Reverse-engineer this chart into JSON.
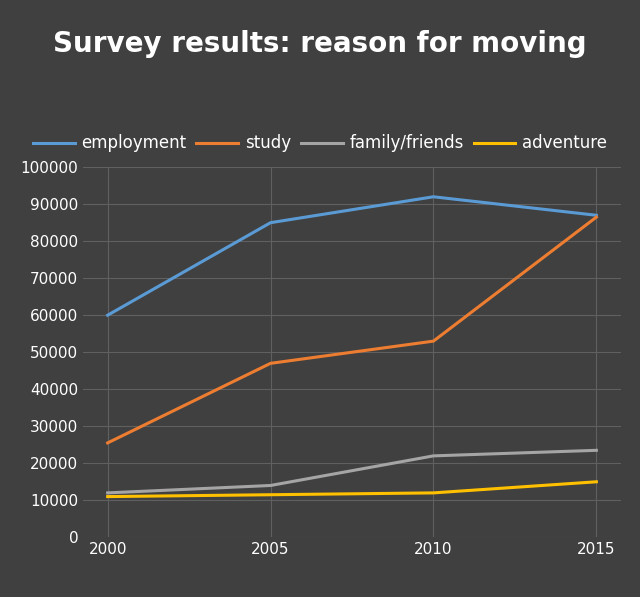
{
  "title": "Survey results: reason for moving",
  "x_values": [
    2000,
    2005,
    2010,
    2015
  ],
  "series": [
    {
      "label": "employment",
      "color": "#5b9bd5",
      "values": [
        60000,
        85000,
        92000,
        87000
      ]
    },
    {
      "label": "study",
      "color": "#ed7d31",
      "values": [
        25500,
        47000,
        53000,
        86500
      ]
    },
    {
      "label": "family/friends",
      "color": "#a5a5a5",
      "values": [
        12000,
        14000,
        22000,
        23500
      ]
    },
    {
      "label": "adventure",
      "color": "#ffc000",
      "values": [
        11000,
        11500,
        12000,
        15000
      ]
    }
  ],
  "ylim": [
    0,
    100000
  ],
  "yticks": [
    0,
    10000,
    20000,
    30000,
    40000,
    50000,
    60000,
    70000,
    80000,
    90000,
    100000
  ],
  "xticks": [
    2000,
    2005,
    2010,
    2015
  ],
  "background_color": "#404040",
  "plot_bg_color": "#404040",
  "grid_color": "#606060",
  "text_color": "#ffffff",
  "title_fontsize": 20,
  "legend_fontsize": 12,
  "tick_fontsize": 11,
  "line_width": 2.2
}
